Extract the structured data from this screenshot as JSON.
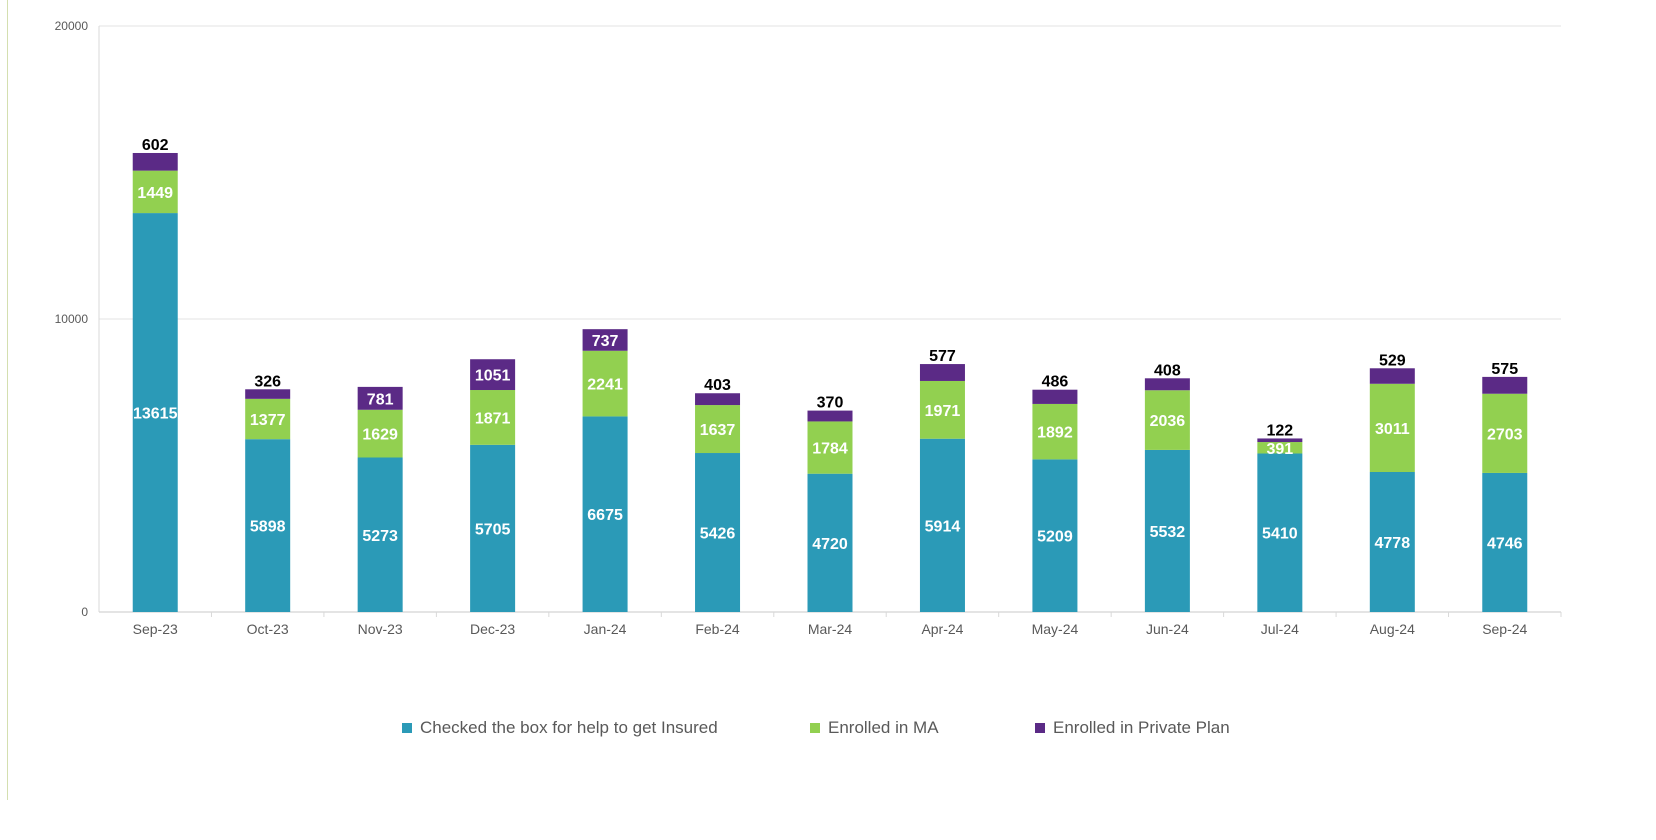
{
  "chart_data": {
    "type": "bar",
    "stacked": true,
    "categories": [
      "Sep-23",
      "Oct-23",
      "Nov-23",
      "Dec-23",
      "Jan-24",
      "Feb-24",
      "Mar-24",
      "Apr-24",
      "May-24",
      "Jun-24",
      "Jul-24",
      "Aug-24",
      "Sep-24"
    ],
    "series": [
      {
        "name": "Checked the box for help to get Insured",
        "color": "#2b9ab7",
        "values": [
          13615,
          5898,
          5273,
          5705,
          6675,
          5426,
          4720,
          5914,
          5209,
          5532,
          5410,
          4778,
          4746
        ]
      },
      {
        "name": "Enrolled in MA",
        "color": "#92d050",
        "values": [
          1449,
          1377,
          1629,
          1871,
          2241,
          1637,
          1784,
          1971,
          1892,
          2036,
          391,
          3011,
          2703
        ]
      },
      {
        "name": "Enrolled in Private Plan",
        "color": "#5b2a86",
        "values": [
          602,
          326,
          781,
          1051,
          737,
          403,
          370,
          577,
          486,
          408,
          122,
          529,
          575
        ]
      }
    ],
    "yticks": [
      "0",
      "10000",
      "20000"
    ],
    "ylim": [
      0,
      20000
    ],
    "grid": true,
    "legend_position": "bottom",
    "title": "",
    "xlabel": "",
    "ylabel": ""
  }
}
